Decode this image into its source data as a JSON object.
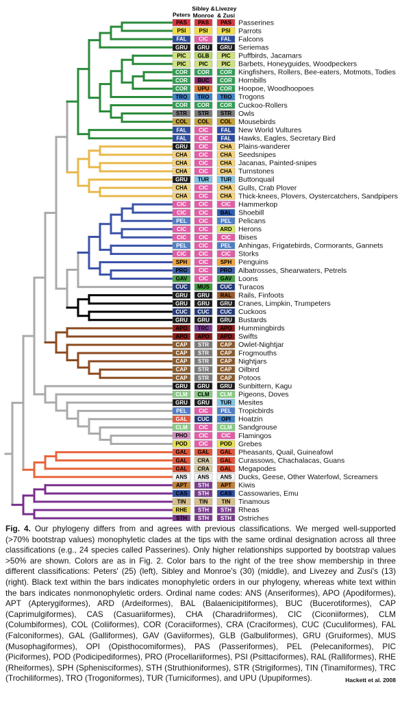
{
  "header": {
    "columns": [
      [
        "Peters"
      ],
      [
        "Sibley &",
        "Monroe"
      ],
      [
        "Livezey",
        "& Zusi"
      ]
    ]
  },
  "palette": {
    "PAS": "#d9363e",
    "PSI": "#f2e04b",
    "FAL": "#2c4c9e",
    "CIC": "#e15da5",
    "GRU": "#1a1a1a",
    "PIC": "#cfe27e",
    "GLB": "#b8d86a",
    "COR": "#2f9e52",
    "BUC": "#8d2a6a",
    "UPU": "#e0782a",
    "TRO": "#3f82c6",
    "STR": "#7a7a7a",
    "COL": "#c7a23a",
    "CHA": "#f7d47a",
    "TUR": "#7fc4e8",
    "BAL": "#2f5db0",
    "PEL": "#4f7fc8",
    "ARD": "#d8e66b",
    "SPH": "#f0a23a",
    "PRO": "#3b5ea8",
    "GAV": "#47a047",
    "CUC": "#223a7a",
    "MUS": "#3f9a3f",
    "RAL": "#9a5a2a",
    "APO": "#8b1a1a",
    "TRC": "#7a3b8e",
    "CAP": "#8b5a2b",
    "CLM": "#86cc82",
    "OPI": "#3f82c6",
    "PHO": "#d48ac0",
    "POD": "#e6e04a",
    "GAL": "#e2553a",
    "CRA": "#d9c9a0",
    "ANS": "#f4f4f4",
    "APT": "#c0803a",
    "CAS": "#2c4c9e",
    "STH": "#7a3b8e",
    "TIN": "#d8c08a",
    "RHE": "#e8d24a"
  },
  "rows": [
    {
      "codes": [
        "PAS",
        "PAS",
        "PAS"
      ],
      "inks": [
        "#000",
        "#000",
        "#000"
      ],
      "label": "Passerines"
    },
    {
      "codes": [
        "PSI",
        "PSI",
        "PSI"
      ],
      "inks": [
        "#000",
        "#000",
        "#000"
      ],
      "label": "Parrots"
    },
    {
      "codes": [
        "FAL",
        "CIC",
        "FAL"
      ],
      "inks": [
        "#fff",
        "#fff",
        "#fff"
      ],
      "label": "Falcons"
    },
    {
      "codes": [
        "GRU",
        "GRU",
        "GRU"
      ],
      "inks": [
        "#fff",
        "#fff",
        "#fff"
      ],
      "label": "Seriemas"
    },
    {
      "codes": [
        "PIC",
        "GLB",
        "PIC"
      ],
      "inks": [
        "#000",
        "#000",
        "#000"
      ],
      "label": "Puffbirds, Jacamars"
    },
    {
      "codes": [
        "PIC",
        "PIC",
        "PIC"
      ],
      "inks": [
        "#000",
        "#000",
        "#000"
      ],
      "label": "Barbets, Honeyguides, Woodpeckers"
    },
    {
      "codes": [
        "COR",
        "COR",
        "COR"
      ],
      "inks": [
        "#fff",
        "#fff",
        "#fff"
      ],
      "label": "Kingfishers, Rollers, Bee-eaters, Motmots, Todies"
    },
    {
      "codes": [
        "COR",
        "BUC",
        "COR"
      ],
      "inks": [
        "#fff",
        "#000",
        "#fff"
      ],
      "label": "Hornbills"
    },
    {
      "codes": [
        "COR",
        "UPU",
        "COR"
      ],
      "inks": [
        "#fff",
        "#000",
        "#fff"
      ],
      "label": "Hoopoe, Woodhoopoes"
    },
    {
      "codes": [
        "TRO",
        "TRO",
        "TRO"
      ],
      "inks": [
        "#000",
        "#000",
        "#000"
      ],
      "label": "Trogons"
    },
    {
      "codes": [
        "COR",
        "COR",
        "COR"
      ],
      "inks": [
        "#fff",
        "#fff",
        "#fff"
      ],
      "label": "Cuckoo-Rollers"
    },
    {
      "codes": [
        "STR",
        "STR",
        "STR"
      ],
      "inks": [
        "#000",
        "#000",
        "#000"
      ],
      "label": "Owls"
    },
    {
      "codes": [
        "COL",
        "COL",
        "COL"
      ],
      "inks": [
        "#000",
        "#000",
        "#000"
      ],
      "label": "Mousebirds"
    },
    {
      "codes": [
        "FAL",
        "CIC",
        "FAL"
      ],
      "inks": [
        "#fff",
        "#fff",
        "#fff"
      ],
      "label": "New World Vultures"
    },
    {
      "codes": [
        "FAL",
        "CIC",
        "FAL"
      ],
      "inks": [
        "#fff",
        "#fff",
        "#fff"
      ],
      "label": "Hawks, Eagles, Secretary Bird"
    },
    {
      "codes": [
        "GRU",
        "CIC",
        "CHA"
      ],
      "inks": [
        "#fff",
        "#fff",
        "#000"
      ],
      "label": "Plains-wanderer"
    },
    {
      "codes": [
        "CHA",
        "CIC",
        "CHA"
      ],
      "inks": [
        "#000",
        "#fff",
        "#000"
      ],
      "label": "Seedsnipes"
    },
    {
      "codes": [
        "CHA",
        "CIC",
        "CHA"
      ],
      "inks": [
        "#000",
        "#fff",
        "#000"
      ],
      "label": "Jacanas, Painted-snipes"
    },
    {
      "codes": [
        "CHA",
        "CIC",
        "CHA"
      ],
      "inks": [
        "#000",
        "#fff",
        "#000"
      ],
      "label": "Turnstones"
    },
    {
      "codes": [
        "GRU",
        "TUR",
        "TUR"
      ],
      "inks": [
        "#fff",
        "#000",
        "#000"
      ],
      "label": "Buttonquail"
    },
    {
      "codes": [
        "CHA",
        "CIC",
        "CHA"
      ],
      "inks": [
        "#000",
        "#fff",
        "#000"
      ],
      "label": "Gulls, Crab Plover"
    },
    {
      "codes": [
        "CHA",
        "CIC",
        "CHA"
      ],
      "inks": [
        "#000",
        "#fff",
        "#000"
      ],
      "label": "Thick-knees, Plovers, Oystercatchers, Sandpipers"
    },
    {
      "codes": [
        "CIC",
        "CIC",
        "CIC"
      ],
      "inks": [
        "#fff",
        "#fff",
        "#fff"
      ],
      "label": "Hammerkop"
    },
    {
      "codes": [
        "CIC",
        "CIC",
        "BAL"
      ],
      "inks": [
        "#fff",
        "#fff",
        "#000"
      ],
      "label": "Shoebill"
    },
    {
      "codes": [
        "PEL",
        "CIC",
        "PEL"
      ],
      "inks": [
        "#fff",
        "#fff",
        "#fff"
      ],
      "label": "Pelicans"
    },
    {
      "codes": [
        "CIC",
        "CIC",
        "ARD"
      ],
      "inks": [
        "#fff",
        "#fff",
        "#000"
      ],
      "label": "Herons"
    },
    {
      "codes": [
        "CIC",
        "CIC",
        "CIC"
      ],
      "inks": [
        "#fff",
        "#fff",
        "#fff"
      ],
      "label": "Ibises"
    },
    {
      "codes": [
        "PEL",
        "CIC",
        "PEL"
      ],
      "inks": [
        "#fff",
        "#fff",
        "#fff"
      ],
      "label": "Anhingas, Frigatebirds, Cormorants, Gannets"
    },
    {
      "codes": [
        "CIC",
        "CIC",
        "CIC"
      ],
      "inks": [
        "#fff",
        "#fff",
        "#fff"
      ],
      "label": "Storks"
    },
    {
      "codes": [
        "SPH",
        "CIC",
        "SPH"
      ],
      "inks": [
        "#000",
        "#fff",
        "#000"
      ],
      "label": "Penguins"
    },
    {
      "codes": [
        "PRO",
        "CIC",
        "PRO"
      ],
      "inks": [
        "#000",
        "#fff",
        "#000"
      ],
      "label": "Albatrosses, Shearwaters, Petrels"
    },
    {
      "codes": [
        "GAV",
        "CIC",
        "GAV"
      ],
      "inks": [
        "#000",
        "#fff",
        "#000"
      ],
      "label": "Loons"
    },
    {
      "codes": [
        "CUC",
        "MUS",
        "CUC"
      ],
      "inks": [
        "#fff",
        "#000",
        "#fff"
      ],
      "label": "Turacos"
    },
    {
      "codes": [
        "GRU",
        "GRU",
        "RAL"
      ],
      "inks": [
        "#fff",
        "#fff",
        "#000"
      ],
      "label": "Rails, Finfoots"
    },
    {
      "codes": [
        "GRU",
        "GRU",
        "GRU"
      ],
      "inks": [
        "#fff",
        "#fff",
        "#fff"
      ],
      "label": "Cranes, Limpkin, Trumpeters"
    },
    {
      "codes": [
        "CUC",
        "CUC",
        "CUC"
      ],
      "inks": [
        "#fff",
        "#fff",
        "#fff"
      ],
      "label": "Cuckoos"
    },
    {
      "codes": [
        "GRU",
        "GRU",
        "GRU"
      ],
      "inks": [
        "#fff",
        "#fff",
        "#fff"
      ],
      "label": "Bustards"
    },
    {
      "codes": [
        "APO",
        "TRC",
        "APO"
      ],
      "inks": [
        "#000",
        "#000",
        "#000"
      ],
      "label": "Hummingbirds"
    },
    {
      "codes": [
        "APO",
        "APO",
        "APO"
      ],
      "inks": [
        "#000",
        "#000",
        "#000"
      ],
      "label": "Swifts"
    },
    {
      "codes": [
        "CAP",
        "STR",
        "CAP"
      ],
      "inks": [
        "#fff",
        "#fff",
        "#fff"
      ],
      "label": "Owlet-Nightjar"
    },
    {
      "codes": [
        "CAP",
        "STR",
        "CAP"
      ],
      "inks": [
        "#fff",
        "#fff",
        "#fff"
      ],
      "label": "Frogmouths"
    },
    {
      "codes": [
        "CAP",
        "STR",
        "CAP"
      ],
      "inks": [
        "#fff",
        "#fff",
        "#fff"
      ],
      "label": "Nightjars"
    },
    {
      "codes": [
        "CAP",
        "STR",
        "CAP"
      ],
      "inks": [
        "#fff",
        "#fff",
        "#fff"
      ],
      "label": "Oilbird"
    },
    {
      "codes": [
        "CAP",
        "STR",
        "CAP"
      ],
      "inks": [
        "#fff",
        "#fff",
        "#fff"
      ],
      "label": "Potoos"
    },
    {
      "codes": [
        "GRU",
        "GRU",
        "GRU"
      ],
      "inks": [
        "#fff",
        "#fff",
        "#fff"
      ],
      "label": "Sunbittern, Kagu"
    },
    {
      "codes": [
        "CLM",
        "CLM",
        "CLM"
      ],
      "inks": [
        "#fff",
        "#000",
        "#fff"
      ],
      "label": "Pigeons, Doves"
    },
    {
      "codes": [
        "GRU",
        "GRU",
        "TUR"
      ],
      "inks": [
        "#fff",
        "#fff",
        "#000"
      ],
      "label": "Mesites"
    },
    {
      "codes": [
        "PEL",
        "CIC",
        "PEL"
      ],
      "inks": [
        "#fff",
        "#fff",
        "#fff"
      ],
      "label": "Tropicbirds"
    },
    {
      "codes": [
        "GAL",
        "CUC",
        "OPI"
      ],
      "inks": [
        "#fff",
        "#fff",
        "#000"
      ],
      "label": "Hoatzin"
    },
    {
      "codes": [
        "CLM",
        "CIC",
        "CLM"
      ],
      "inks": [
        "#fff",
        "#fff",
        "#fff"
      ],
      "label": "Sandgrouse"
    },
    {
      "codes": [
        "PHO",
        "CIC",
        "CIC"
      ],
      "inks": [
        "#000",
        "#fff",
        "#fff"
      ],
      "label": "Flamingos"
    },
    {
      "codes": [
        "POD",
        "CIC",
        "POD"
      ],
      "inks": [
        "#000",
        "#fff",
        "#000"
      ],
      "label": "Grebes"
    },
    {
      "codes": [
        "GAL",
        "GAL",
        "GAL"
      ],
      "inks": [
        "#000",
        "#000",
        "#000"
      ],
      "label": "Pheasants, Quail, Guineafowl"
    },
    {
      "codes": [
        "GAL",
        "CRA",
        "GAL"
      ],
      "inks": [
        "#000",
        "#000",
        "#000"
      ],
      "label": "Curassows, Chachalacas, Guans"
    },
    {
      "codes": [
        "GAL",
        "CRA",
        "GAL"
      ],
      "inks": [
        "#000",
        "#000",
        "#000"
      ],
      "label": "Megapodes"
    },
    {
      "codes": [
        "ANS",
        "ANS",
        "ANS"
      ],
      "inks": [
        "#000",
        "#000",
        "#000"
      ],
      "label": "Ducks, Geese, Other Waterfowl, Screamers"
    },
    {
      "codes": [
        "APT",
        "STH",
        "APT"
      ],
      "inks": [
        "#000",
        "#fff",
        "#000"
      ],
      "label": "Kiwis"
    },
    {
      "codes": [
        "CAS",
        "STH",
        "CAS"
      ],
      "inks": [
        "#000",
        "#fff",
        "#000"
      ],
      "label": "Cassowaries, Emu"
    },
    {
      "codes": [
        "TIN",
        "TIN",
        "TIN"
      ],
      "inks": [
        "#000",
        "#000",
        "#000"
      ],
      "label": "Tinamous"
    },
    {
      "codes": [
        "RHE",
        "STH",
        "STH"
      ],
      "inks": [
        "#000",
        "#fff",
        "#fff"
      ],
      "label": "Rheas"
    },
    {
      "codes": [
        "STH",
        "STH",
        "STH"
      ],
      "inks": [
        "#000",
        "#fff",
        "#fff"
      ],
      "label": "Ostriches"
    }
  ],
  "caption": {
    "label": "Fig. 4.",
    "text": "Our phylogeny differs from and agrees with previous classifications. We merged well-supported (>70% bootstrap values) monophyletic clades at the tips with the same ordinal designation across all three classifications (e.g., 24 species called Passerines). Only higher relationships supported by bootstrap values >50% are shown. Colors are as in Fig. 2. Color bars to the right of the tree show membership in three different classifications: Peters' (25) (left), Sibley and Monroe's (30) (middle), and Livezey and Zusi's (13) (right). Black text within the bars indicates monophyletic orders in our phylogeny, whereas white text within the bars indicates nonmonophyletic orders. Ordinal name codes: ANS (Anseriformes), APO (Apodiformes), APT (Apterygiformes), ARD (Ardeiformes), BAL (Balaenicipitiformes), BUC (Bucerotiformes), CAP (Caprimulgiformes), CAS (Casuariiformes), CHA (Charadriiformes), CIC (Ciconiiformes), CLM (Columbiformes), COL (Coliiformes), COR (Coraciiformes), CRA (Craciformes), CUC (Cuculiformes), FAL (Falconiformes), GAL (Galliformes), GAV (Gaviiformes), GLB (Galbuliformes), GRU (Gruiformes), MUS (Musophagiformes), OPI (Opisthocomiformes), PAS (Passeriformes), PEL (Pelecaniformes), PIC (Piciformes), POD (Podicipediformes), PRO (Procellariiformes), PSI (Psittaciformes), RAL (Ralliformes), RHE (Rheiformes), SPH (Sphenisciformes), STH (Struthioniformes), STR (Strigiformes), TIN (Tinamiformes), TRC (Trochiliformes), TRO (Trogoniformes), TUR (Turniciformes), and UPU (Upupiformes).",
    "credit": "Hackett et al. 2008"
  }
}
